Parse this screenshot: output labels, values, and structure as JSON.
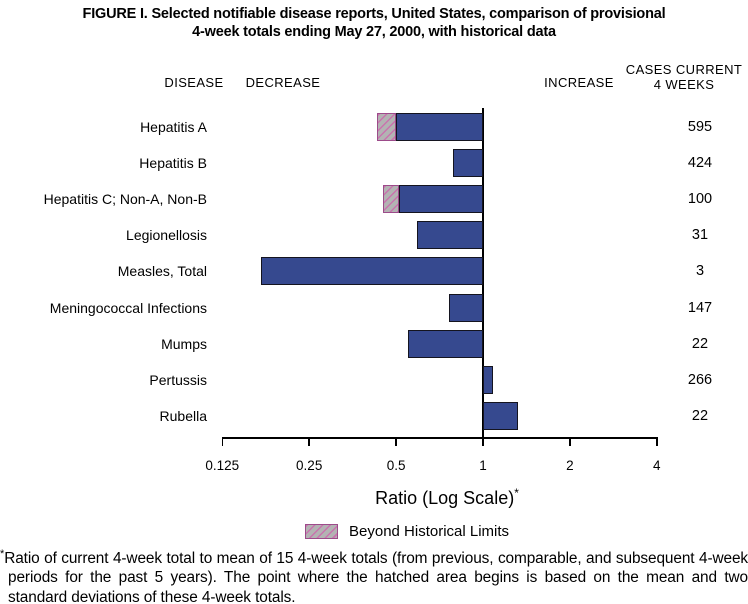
{
  "title": {
    "line1": "FIGURE I. Selected notifiable disease reports, United States, comparison of provisional",
    "line2": "4-week totals ending May 27, 2000, with historical data"
  },
  "column_headers": {
    "disease": "DISEASE",
    "decrease": "DECREASE",
    "increase": "INCREASE",
    "cases_line1": "CASES CURRENT",
    "cases_line2": "4 WEEKS"
  },
  "chart_data": {
    "type": "bar",
    "orientation": "horizontal",
    "scale": "log2",
    "baseline_ratio": 1,
    "axis": {
      "title": "Ratio (Log Scale)",
      "title_suffix": "*",
      "ticks": [
        0.125,
        0.25,
        0.5,
        1,
        2,
        4
      ],
      "tick_labels": [
        "0.125",
        "0.25",
        "0.5",
        "1",
        "2",
        "4"
      ],
      "range": [
        0.125,
        4
      ],
      "grid": false
    },
    "rows": [
      {
        "disease": "Hepatitis A",
        "ratio": 0.43,
        "beyond_historical_limit": true,
        "historical_limit": 0.5,
        "cases": "595"
      },
      {
        "disease": "Hepatitis B",
        "ratio": 0.79,
        "beyond_historical_limit": false,
        "cases": "424"
      },
      {
        "disease": "Hepatitis C; Non-A, Non-B",
        "ratio": 0.45,
        "beyond_historical_limit": true,
        "historical_limit": 0.51,
        "cases": "100"
      },
      {
        "disease": "Legionellosis",
        "ratio": 0.59,
        "beyond_historical_limit": false,
        "cases": "31"
      },
      {
        "disease": "Measles, Total",
        "ratio": 0.17,
        "beyond_historical_limit": false,
        "cases": "3"
      },
      {
        "disease": "Meningococcal Infections",
        "ratio": 0.76,
        "beyond_historical_limit": false,
        "cases": "147"
      },
      {
        "disease": "Mumps",
        "ratio": 0.55,
        "beyond_historical_limit": false,
        "cases": "22"
      },
      {
        "disease": "Pertussis",
        "ratio": 1.08,
        "beyond_historical_limit": false,
        "cases": "266"
      },
      {
        "disease": "Rubella",
        "ratio": 1.32,
        "beyond_historical_limit": false,
        "cases": "22"
      }
    ],
    "colors": {
      "bar_fill": "#36498F",
      "bar_border": "#14141f",
      "hatch_fill": "#b3b3b3",
      "hatch_stripe": "#c973ae",
      "hatch_border": "#9c4b8a"
    },
    "legend_position": "bottom"
  },
  "legend": {
    "label": "Beyond Historical Limits"
  },
  "footnote": {
    "marker": "*",
    "text": "Ratio of current 4-week total to mean of 15 4-week totals (from previous, comparable, and subsequent 4-week periods for the past 5 years). The point where the hatched area begins is based on the mean and two standard deviations of these 4-week totals."
  }
}
